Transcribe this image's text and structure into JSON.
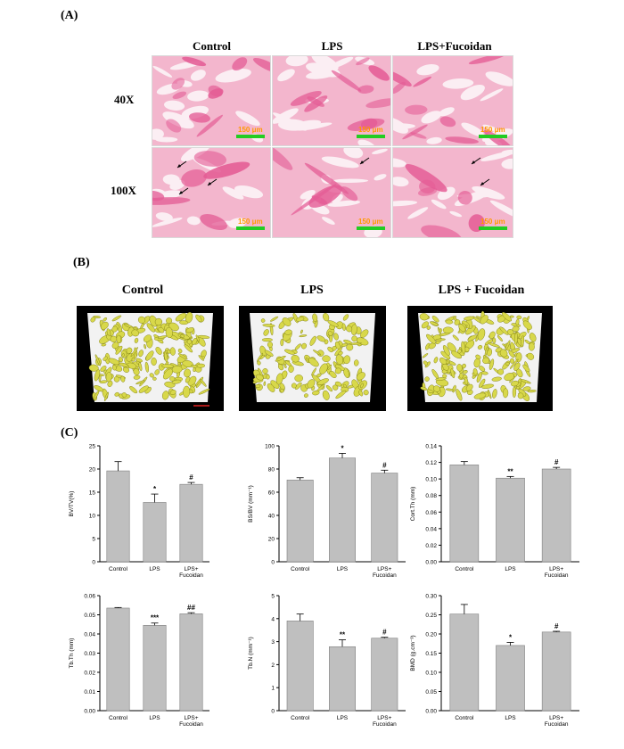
{
  "panelA": {
    "label": "(A)",
    "columns": [
      "Control",
      "LPS",
      "LPS+Fucoidan"
    ],
    "rows": [
      "40X",
      "100X"
    ],
    "scale_bars": [
      [
        "150 μm",
        "150 μm",
        "150 μm"
      ],
      [
        "150 μm",
        "150 μm",
        "150 μm"
      ]
    ]
  },
  "panelB": {
    "label": "(B)",
    "columns": [
      "Control",
      "LPS",
      "LPS + Fucoidan"
    ]
  },
  "panelC": {
    "label": "(C)"
  },
  "colors": {
    "bar": "#bfbfbf",
    "histo_bg": "#f3b6cd",
    "histo_tissue": "#e45c95",
    "ct_bone": "#d8d84a",
    "scale": "#22cc22"
  },
  "chart_data": [
    {
      "type": "bar",
      "categories": [
        "Control",
        "LPS",
        "LPS+\nFucoidan"
      ],
      "values": [
        19.6,
        12.8,
        16.7
      ],
      "errors": [
        2.0,
        1.8,
        0.4
      ],
      "sig": [
        "",
        "*",
        "#"
      ],
      "ylabel": "BV/TV(%)",
      "ylim": [
        0,
        25
      ],
      "yticks": [
        "0",
        "5",
        "10",
        "15",
        "20",
        "25"
      ]
    },
    {
      "type": "bar",
      "categories": [
        "Control",
        "LPS",
        "LPS+\nFucoidan"
      ],
      "values": [
        70.5,
        89.5,
        76.5
      ],
      "errors": [
        2.0,
        4.0,
        2.5
      ],
      "sig": [
        "",
        "*",
        "#"
      ],
      "ylabel": "BS/BV (mm⁻¹)",
      "ylim": [
        0,
        100
      ],
      "yticks": [
        "0",
        "20",
        "40",
        "60",
        "80",
        "100"
      ]
    },
    {
      "type": "bar",
      "categories": [
        "Control",
        "LPS",
        "LPS+\nFucoidan"
      ],
      "values": [
        0.117,
        0.101,
        0.112
      ],
      "errors": [
        0.004,
        0.002,
        0.002
      ],
      "sig": [
        "",
        "**",
        "#"
      ],
      "ylabel": "Cort.Th (mm)",
      "ylim": [
        0,
        0.14
      ],
      "yticks": [
        "0.00",
        "0.02",
        "0.04",
        "0.06",
        "0.08",
        "0.10",
        "0.12",
        "0.14"
      ]
    },
    {
      "type": "bar",
      "categories": [
        "Control",
        "LPS",
        "LPS+\nFucoidan"
      ],
      "values": [
        0.0535,
        0.0445,
        0.0505
      ],
      "errors": [
        0.0003,
        0.0012,
        0.0006
      ],
      "sig": [
        "",
        "***",
        "##"
      ],
      "ylabel": "Tb.Th (mm)",
      "ylim": [
        0,
        0.06
      ],
      "yticks": [
        "0.00",
        "0.01",
        "0.02",
        "0.03",
        "0.04",
        "0.05",
        "0.06"
      ]
    },
    {
      "type": "bar",
      "categories": [
        "Control",
        "LPS",
        "LPS+\nFucoidan"
      ],
      "values": [
        3.9,
        2.78,
        3.15
      ],
      "errors": [
        0.3,
        0.3,
        0.04
      ],
      "sig": [
        "",
        "**",
        "#"
      ],
      "ylabel": "Tb.N (mm⁻¹)",
      "ylim": [
        0,
        5
      ],
      "yticks": [
        "0",
        "1",
        "2",
        "3",
        "4",
        "5"
      ]
    },
    {
      "type": "bar",
      "categories": [
        "Control",
        "LPS",
        "LPS+\nFucoidan"
      ],
      "values": [
        0.252,
        0.17,
        0.205
      ],
      "errors": [
        0.025,
        0.008,
        0.002
      ],
      "sig": [
        "",
        "*",
        "#"
      ],
      "ylabel": "BMD (g.cm⁻³)",
      "ylim": [
        0,
        0.3
      ],
      "yticks": [
        "0.00",
        "0.05",
        "0.10",
        "0.15",
        "0.20",
        "0.25",
        "0.30"
      ]
    }
  ]
}
